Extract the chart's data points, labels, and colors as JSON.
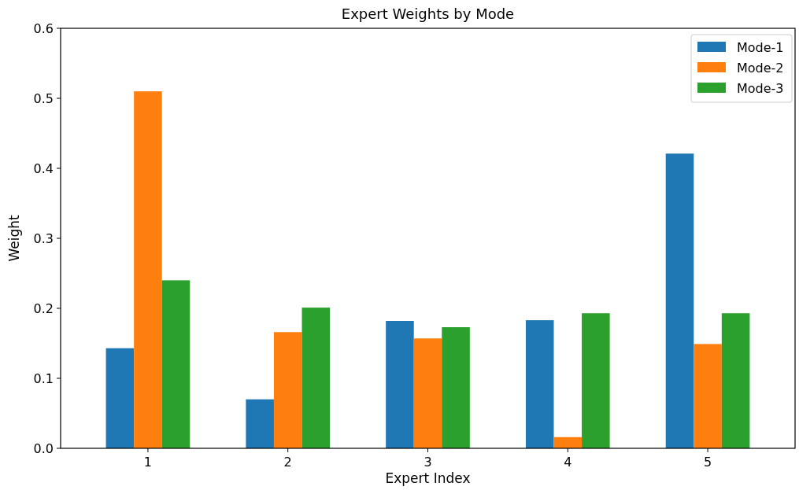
{
  "chart_data": {
    "type": "bar",
    "title": "Expert Weights by Mode",
    "xlabel": "Expert Index",
    "ylabel": "Weight",
    "categories": [
      "1",
      "2",
      "3",
      "4",
      "5"
    ],
    "series": [
      {
        "name": "Mode-1",
        "color": "#1f77b4",
        "values": [
          0.143,
          0.07,
          0.182,
          0.183,
          0.421
        ]
      },
      {
        "name": "Mode-2",
        "color": "#ff7f0e",
        "values": [
          0.51,
          0.166,
          0.157,
          0.016,
          0.149
        ]
      },
      {
        "name": "Mode-3",
        "color": "#2ca02c",
        "values": [
          0.24,
          0.201,
          0.173,
          0.193,
          0.193
        ]
      }
    ],
    "ylim": [
      0,
      0.6
    ],
    "yticks": [
      {
        "value": 0,
        "label": "0.0"
      },
      0.1,
      0.2,
      0.3,
      0.4,
      0.5,
      0.6
    ],
    "grid": false,
    "legend": "top right"
  }
}
